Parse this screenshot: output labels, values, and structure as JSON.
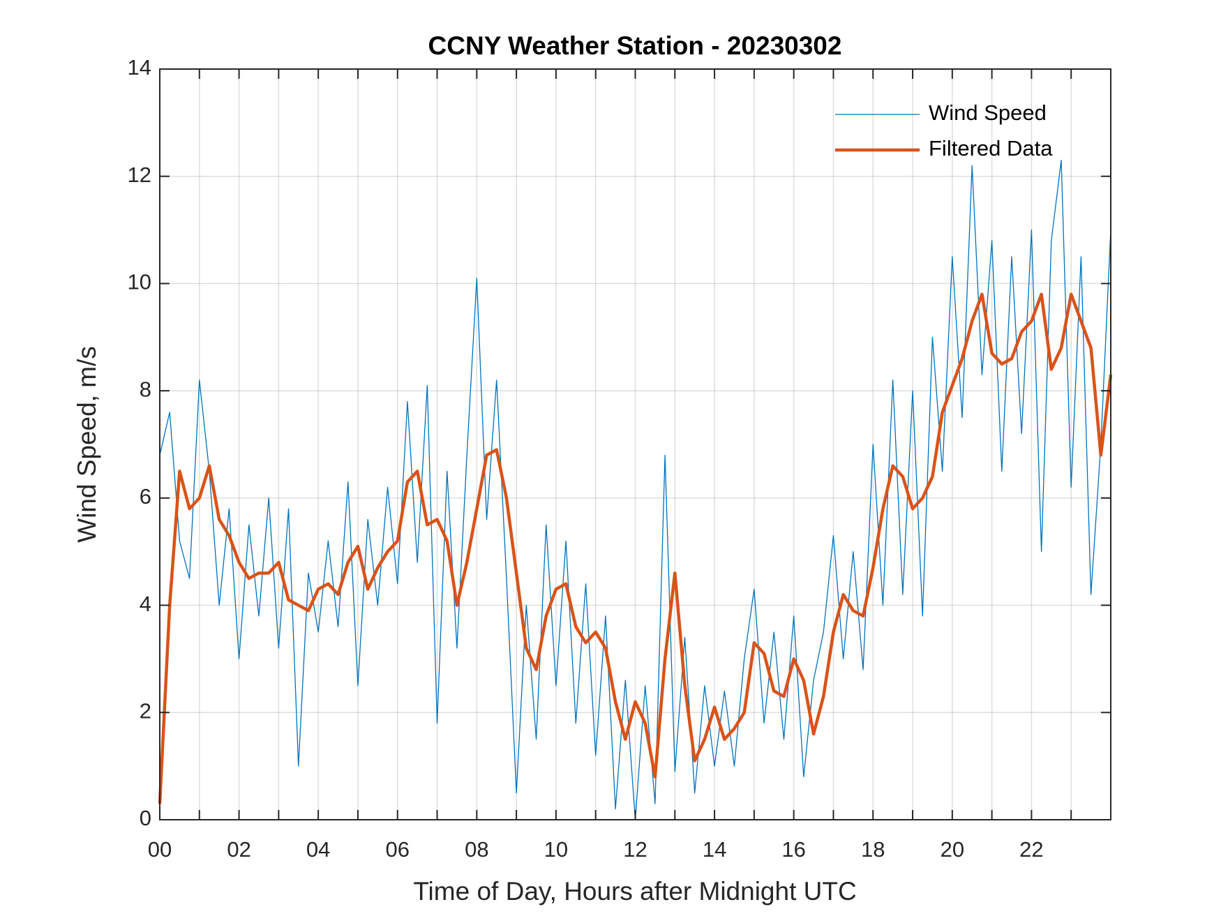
{
  "chart_data": {
    "type": "line",
    "title": "CCNY Weather Station - 20230302",
    "x_label": "Time of Day, Hours after Midnight UTC",
    "y_label": "Wind Speed, m/s",
    "x": [
      0,
      0.25,
      0.5,
      0.75,
      1,
      1.25,
      1.5,
      1.75,
      2,
      2.25,
      2.5,
      2.75,
      3,
      3.25,
      3.5,
      3.75,
      4,
      4.25,
      4.5,
      4.75,
      5,
      5.25,
      5.5,
      5.75,
      6,
      6.25,
      6.5,
      6.75,
      7,
      7.25,
      7.5,
      7.75,
      8,
      8.25,
      8.5,
      8.75,
      9,
      9.25,
      9.5,
      9.75,
      10,
      10.25,
      10.5,
      10.75,
      11,
      11.25,
      11.5,
      11.75,
      12,
      12.25,
      12.5,
      12.75,
      13,
      13.25,
      13.5,
      13.75,
      14,
      14.25,
      14.5,
      14.75,
      15,
      15.25,
      15.5,
      15.75,
      16,
      16.25,
      16.5,
      16.75,
      17,
      17.25,
      17.5,
      17.75,
      18,
      18.25,
      18.5,
      18.75,
      19,
      19.25,
      19.5,
      19.75,
      20,
      20.25,
      20.5,
      20.75,
      21,
      21.25,
      21.5,
      21.75,
      22,
      22.25,
      22.5,
      22.75,
      23,
      23.25,
      23.5,
      23.75,
      24
    ],
    "series": [
      {
        "name": "Wind Speed",
        "color": "#0072bd",
        "width": 1.3,
        "values": [
          6.8,
          7.6,
          5.2,
          4.5,
          8.2,
          6.5,
          4.0,
          5.8,
          3.0,
          5.5,
          3.8,
          6.0,
          3.2,
          5.8,
          1.0,
          4.6,
          3.5,
          5.2,
          3.6,
          6.3,
          2.5,
          5.6,
          4.0,
          6.2,
          4.4,
          7.8,
          4.8,
          8.1,
          1.8,
          6.5,
          3.2,
          6.8,
          10.1,
          5.6,
          8.2,
          4.5,
          0.5,
          4.0,
          1.5,
          5.5,
          2.5,
          5.2,
          1.8,
          4.4,
          1.2,
          3.8,
          0.2,
          2.6,
          0.0,
          2.5,
          0.3,
          6.8,
          0.9,
          3.4,
          0.5,
          2.5,
          1.0,
          2.4,
          1.0,
          3.0,
          4.3,
          1.8,
          3.5,
          1.5,
          3.8,
          0.8,
          2.6,
          3.5,
          5.3,
          3.0,
          5.0,
          2.8,
          7.0,
          4.0,
          8.2,
          4.2,
          8.0,
          3.8,
          9.0,
          6.5,
          10.5,
          7.5,
          12.2,
          8.3,
          10.8,
          6.5,
          10.5,
          7.2,
          11.0,
          5.0,
          10.8,
          12.3,
          6.2,
          10.5,
          4.2,
          7.0,
          11.0
        ]
      },
      {
        "name": "Filtered Data",
        "color": "#d95319",
        "width": 4.5,
        "values": [
          0.3,
          4.0,
          6.5,
          5.8,
          6.0,
          6.6,
          5.6,
          5.3,
          4.8,
          4.5,
          4.6,
          4.6,
          4.8,
          4.1,
          4.0,
          3.9,
          4.3,
          4.4,
          4.2,
          4.8,
          5.1,
          4.3,
          4.7,
          5.0,
          5.2,
          6.3,
          6.5,
          5.5,
          5.6,
          5.2,
          4.0,
          4.8,
          5.8,
          6.8,
          6.9,
          6.0,
          4.6,
          3.2,
          2.8,
          3.8,
          4.3,
          4.4,
          3.6,
          3.3,
          3.5,
          3.2,
          2.2,
          1.5,
          2.2,
          1.8,
          0.8,
          3.0,
          4.6,
          2.5,
          1.1,
          1.5,
          2.1,
          1.5,
          1.7,
          2.0,
          3.3,
          3.1,
          2.4,
          2.3,
          3.0,
          2.6,
          1.6,
          2.3,
          3.5,
          4.2,
          3.9,
          3.8,
          4.7,
          5.8,
          6.6,
          6.4,
          5.8,
          6.0,
          6.4,
          7.6,
          8.1,
          8.6,
          9.3,
          9.8,
          8.7,
          8.5,
          8.6,
          9.1,
          9.3,
          9.8,
          8.4,
          8.8,
          9.8,
          9.3,
          8.8,
          6.8,
          8.3
        ]
      }
    ],
    "xlim": [
      0,
      24
    ],
    "xticks": [
      {
        "value": 0,
        "label": "00"
      },
      {
        "value": 2,
        "label": "02"
      },
      {
        "value": 4,
        "label": "04"
      },
      {
        "value": 6,
        "label": "06"
      },
      {
        "value": 8,
        "label": "08"
      },
      {
        "value": 10,
        "label": "10"
      },
      {
        "value": 12,
        "label": "12"
      },
      {
        "value": 14,
        "label": "14"
      },
      {
        "value": 16,
        "label": "16"
      },
      {
        "value": 18,
        "label": "18"
      },
      {
        "value": 20,
        "label": "20"
      },
      {
        "value": 22,
        "label": "22"
      }
    ],
    "xminorticks": [
      1,
      3,
      5,
      7,
      9,
      11,
      13,
      15,
      17,
      19,
      21,
      23
    ],
    "ylim": [
      0,
      14
    ],
    "yticks": [
      0,
      2,
      4,
      6,
      8,
      10,
      12,
      14
    ],
    "grid": true,
    "legend": "northeast"
  }
}
